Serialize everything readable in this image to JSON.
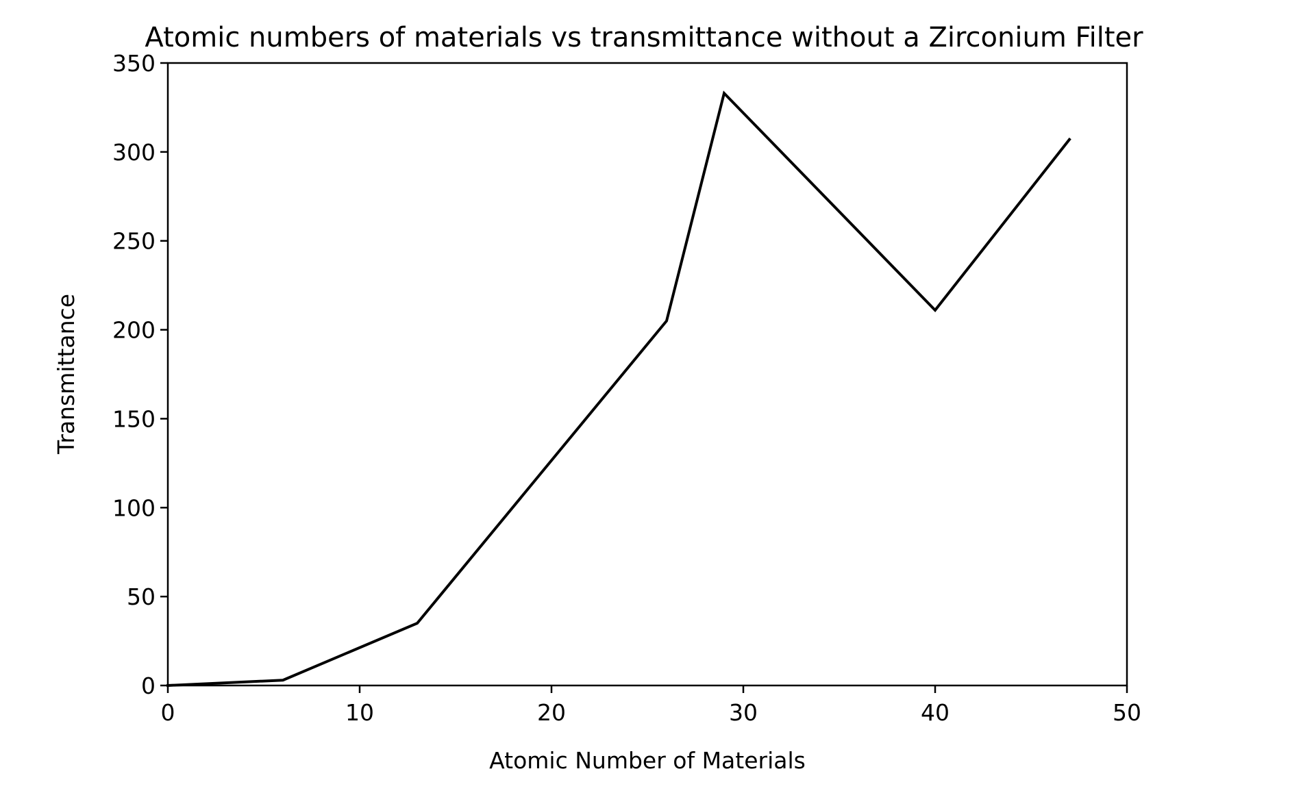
{
  "chart_data": {
    "type": "line",
    "title": "Atomic numbers of materials vs transmittance without a Zirconium Filter",
    "xlabel": "Atomic Number of Materials",
    "ylabel": "Transmittance",
    "xlim": [
      0,
      50
    ],
    "ylim": [
      0,
      350
    ],
    "xticks": [
      "0",
      "10",
      "20",
      "30",
      "40",
      "50"
    ],
    "yticks": [
      "0",
      "50",
      "100",
      "150",
      "200",
      "250",
      "300",
      "350"
    ],
    "grid": false,
    "legend": null,
    "series": [
      {
        "color": "#000000",
        "x": [
          0,
          6,
          13,
          26,
          29,
          40,
          47
        ],
        "y": [
          0,
          3,
          35,
          205,
          333,
          211,
          307
        ]
      }
    ]
  }
}
